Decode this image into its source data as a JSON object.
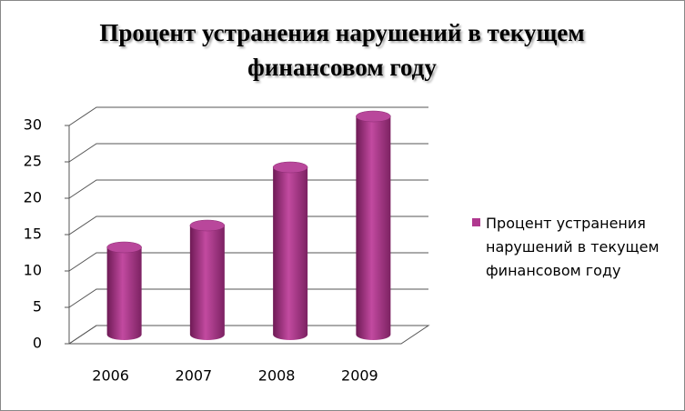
{
  "chart_data": {
    "type": "bar3d",
    "title": "Процент устранения нарушений в текущем финансовом году",
    "categories": [
      "2006",
      "2007",
      "2008",
      "2009"
    ],
    "series": [
      {
        "name": "Процент устранения нарушений в текущем финансовом году",
        "color": "#b0388f",
        "values": [
          12,
          15,
          23,
          30
        ]
      }
    ],
    "ylim": [
      0,
      30
    ],
    "yticks": [
      0,
      5,
      10,
      15,
      20,
      25,
      30
    ],
    "grid": true,
    "legend": "right"
  }
}
